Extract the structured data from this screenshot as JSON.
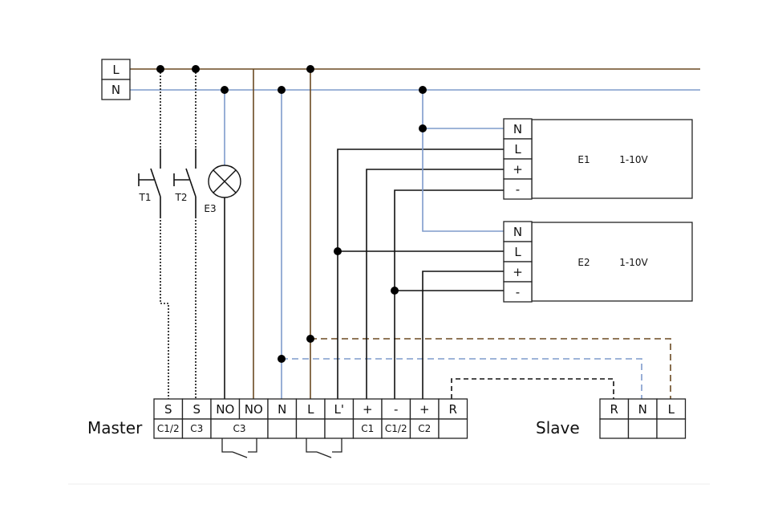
{
  "colors": {
    "line_L": "#6b4a22",
    "line_N": "#7f9bcc",
    "signal": "#111111"
  },
  "supply": {
    "L": "L",
    "N": "N"
  },
  "components": {
    "T1": "T1",
    "T2": "T2",
    "E3": "E3"
  },
  "drivers": [
    {
      "name": "E1",
      "type": "1-10V",
      "terminals": [
        "N",
        "L",
        "+",
        "-"
      ]
    },
    {
      "name": "E2",
      "type": "1-10V",
      "terminals": [
        "N",
        "L",
        "+",
        "-"
      ]
    }
  ],
  "master": {
    "label": "Master",
    "top": [
      "S",
      "S",
      "NO",
      "NO",
      "N",
      "L",
      "L'",
      "+",
      "-",
      "+",
      "R"
    ],
    "bottom": [
      "C1/2",
      "C3",
      "C3",
      "",
      "",
      "",
      "C1",
      "C1/2",
      "C2",
      ""
    ]
  },
  "slave": {
    "label": "Slave",
    "top": [
      "R",
      "N",
      "L"
    ]
  }
}
